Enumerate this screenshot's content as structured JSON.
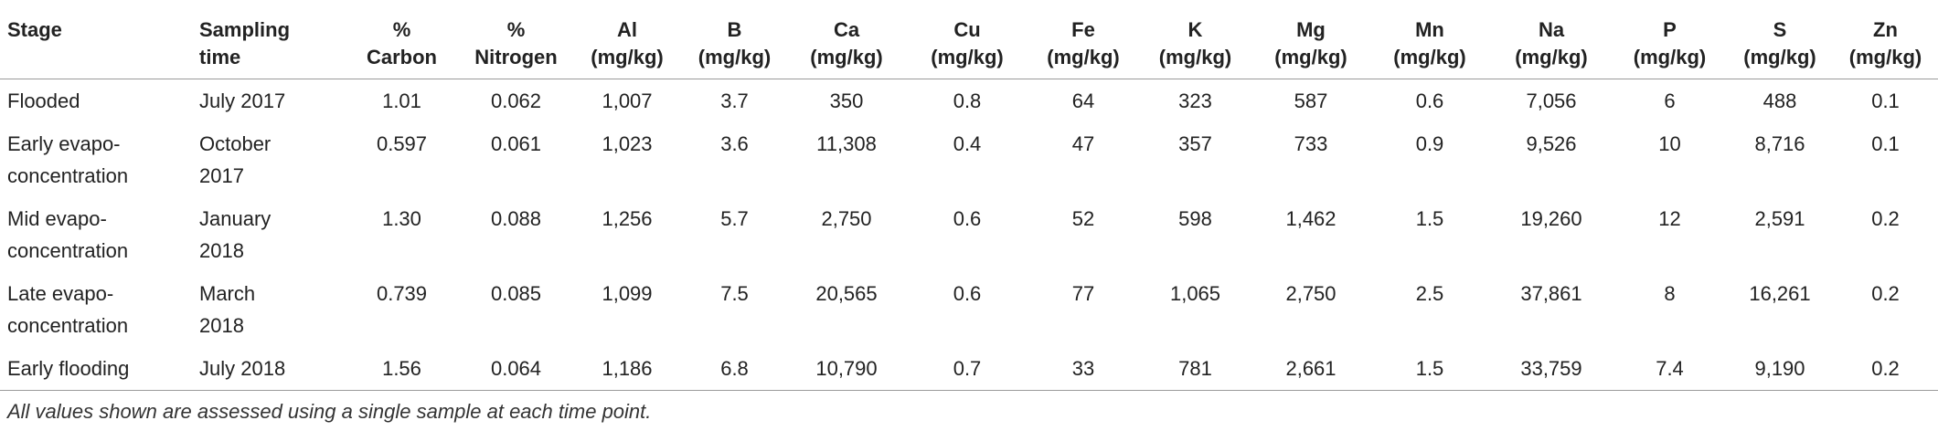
{
  "table": {
    "header": [
      [
        "Stage"
      ],
      [
        "Sampling",
        "time"
      ],
      [
        "%",
        "Carbon"
      ],
      [
        "%",
        "Nitrogen"
      ],
      [
        "Al",
        "(mg/kg)"
      ],
      [
        "B",
        "(mg/kg)"
      ],
      [
        "Ca",
        "(mg/kg)"
      ],
      [
        "Cu",
        "(mg/kg)"
      ],
      [
        "Fe",
        "(mg/kg)"
      ],
      [
        "K",
        "(mg/kg)"
      ],
      [
        "Mg",
        "(mg/kg)"
      ],
      [
        "Mn",
        "(mg/kg)"
      ],
      [
        "Na",
        "(mg/kg)"
      ],
      [
        "P",
        "(mg/kg)"
      ],
      [
        "S",
        "(mg/kg)"
      ],
      [
        "Zn",
        "(mg/kg)"
      ]
    ],
    "rows": [
      [
        "Flooded",
        "July 2017",
        "1.01",
        "0.062",
        "1,007",
        "3.7",
        "350",
        "0.8",
        "64",
        "323",
        "587",
        "0.6",
        "7,056",
        "6",
        "488",
        "0.1"
      ],
      [
        "Early evapo-concentration",
        "October 2017",
        "0.597",
        "0.061",
        "1,023",
        "3.6",
        "11,308",
        "0.4",
        "47",
        "357",
        "733",
        "0.9",
        "9,526",
        "10",
        "8,716",
        "0.1"
      ],
      [
        "Mid evapo-concentration",
        "January 2018",
        "1.30",
        "0.088",
        "1,256",
        "5.7",
        "2,750",
        "0.6",
        "52",
        "598",
        "1,462",
        "1.5",
        "19,260",
        "12",
        "2,591",
        "0.2"
      ],
      [
        "Late evapo-concentration",
        "March 2018",
        "0.739",
        "0.085",
        "1,099",
        "7.5",
        "20,565",
        "0.6",
        "77",
        "1,065",
        "2,750",
        "2.5",
        "37,861",
        "8",
        "16,261",
        "0.2"
      ],
      [
        "Early flooding",
        "July 2018",
        "1.56",
        "0.064",
        "1,186",
        "6.8",
        "10,790",
        "0.7",
        "33",
        "781",
        "2,661",
        "1.5",
        "33,759",
        "7.4",
        "9,190",
        "0.2"
      ]
    ],
    "footnote": "All values shown are assessed using a single sample at each time point."
  }
}
